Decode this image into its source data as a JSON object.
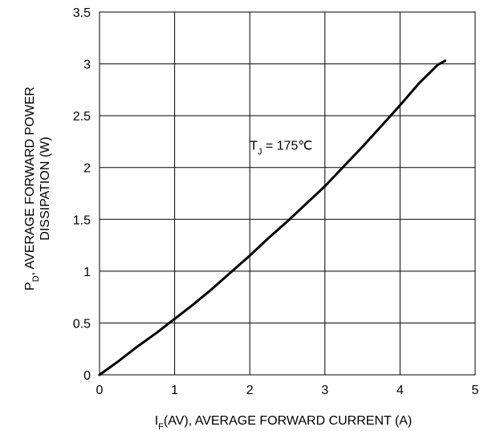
{
  "chart_data": {
    "type": "line",
    "title": "",
    "xlabel": {
      "prefix": "I",
      "subscript": "F",
      "suffix": "(AV), AVERAGE FORWARD CURRENT (A)"
    },
    "ylabel": {
      "line1_prefix": "P",
      "line1_subscript": "D",
      "line1_suffix": ", AVERAGE FORWARD POWER",
      "line2": "DISSIPATION (W)"
    },
    "xlim": [
      0,
      5
    ],
    "ylim": [
      0,
      3.5
    ],
    "x_ticks": [
      0,
      1,
      2,
      3,
      4,
      5
    ],
    "x_tick_labels": [
      "0",
      "1",
      "2",
      "3",
      "4",
      "5"
    ],
    "y_ticks": [
      0,
      0.5,
      1,
      1.5,
      2,
      2.5,
      3,
      3.5
    ],
    "y_tick_labels": [
      "0",
      "0.5",
      "1",
      "1.5",
      "2",
      "2.5",
      "3",
      "3.5"
    ],
    "grid": true,
    "annotation": {
      "prefix": "T",
      "subscript": "J",
      "suffix": " = 175℃",
      "x": 2.0,
      "y": 2.22
    },
    "series": [
      {
        "color": "#000000",
        "x": [
          0,
          0.25,
          0.5,
          0.75,
          1.0,
          1.25,
          1.5,
          1.75,
          2.0,
          2.25,
          2.5,
          2.75,
          3.0,
          3.25,
          3.5,
          3.75,
          4.0,
          4.25,
          4.5,
          4.6
        ],
        "y": [
          0,
          0.13,
          0.27,
          0.4,
          0.54,
          0.68,
          0.83,
          0.99,
          1.15,
          1.32,
          1.48,
          1.65,
          1.82,
          2.01,
          2.2,
          2.4,
          2.6,
          2.81,
          2.99,
          3.03
        ]
      }
    ]
  }
}
